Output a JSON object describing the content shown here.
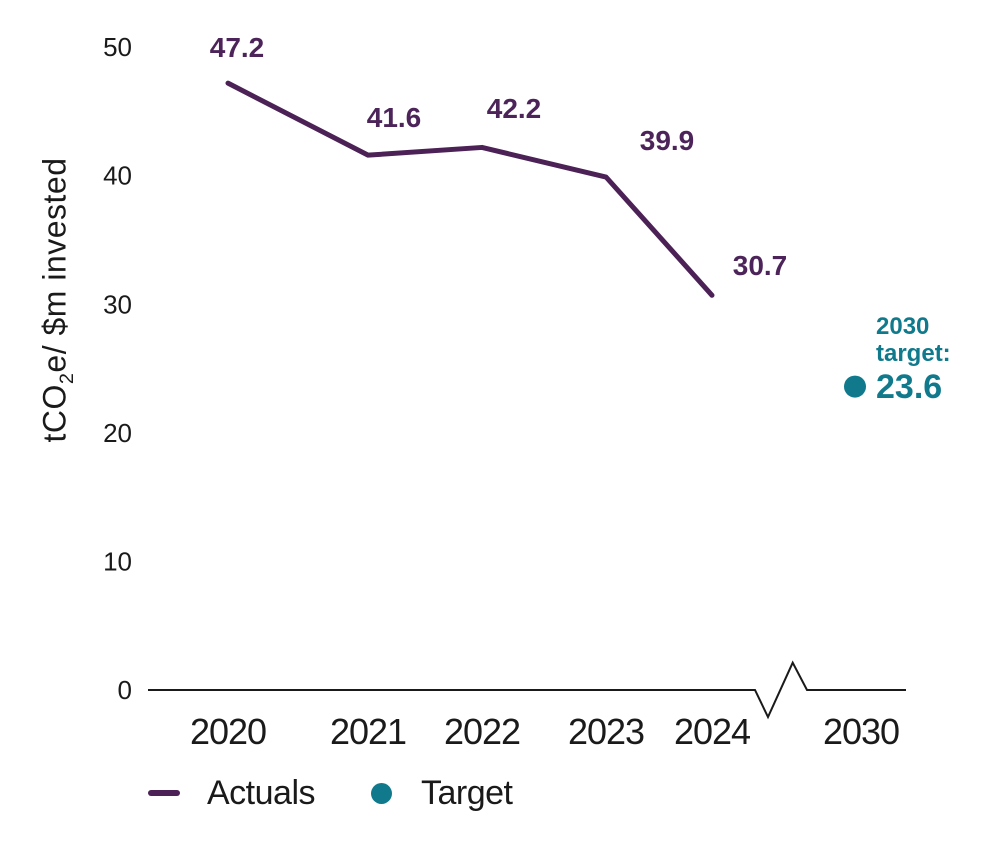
{
  "page": {
    "background": "#ffffff"
  },
  "colors": {
    "actuals_line": "#4B2156",
    "actuals_label": "#4D2459",
    "target": "#107A8C",
    "axis": "#1a1a1a",
    "text": "#1a1a1a"
  },
  "chart_data": {
    "type": "line",
    "title": "",
    "ylabel": {
      "pre": "tCO",
      "sub": "2",
      "post": "e/ $m invested"
    },
    "categories": [
      "2020",
      "2021",
      "2022",
      "2023",
      "2024"
    ],
    "series": [
      {
        "name": "Actuals",
        "values": [
          47.2,
          41.6,
          42.2,
          39.9,
          30.7
        ],
        "color": "#4B2156",
        "marker": "line"
      }
    ],
    "data_labels": [
      "47.2",
      "41.6",
      "42.2",
      "39.9",
      "30.7"
    ],
    "target_point": {
      "category": "2030",
      "value": 23.6,
      "color": "#107A8C",
      "annotation_lines": [
        "2030",
        "target:"
      ],
      "value_label": "23.6"
    },
    "yticks": [
      "0",
      "10",
      "20",
      "30",
      "40",
      "50"
    ],
    "ytick_values": [
      0,
      10,
      20,
      30,
      40,
      50
    ],
    "ylim": [
      0,
      52
    ],
    "grid": "off",
    "axis_break_between": [
      "2024",
      "2030"
    ],
    "legend": {
      "position": "bottom-left",
      "items": [
        {
          "label": "Actuals",
          "marker": "line",
          "color": "#4B2156"
        },
        {
          "label": "Target",
          "marker": "dot",
          "color": "#107A8C"
        }
      ]
    }
  }
}
